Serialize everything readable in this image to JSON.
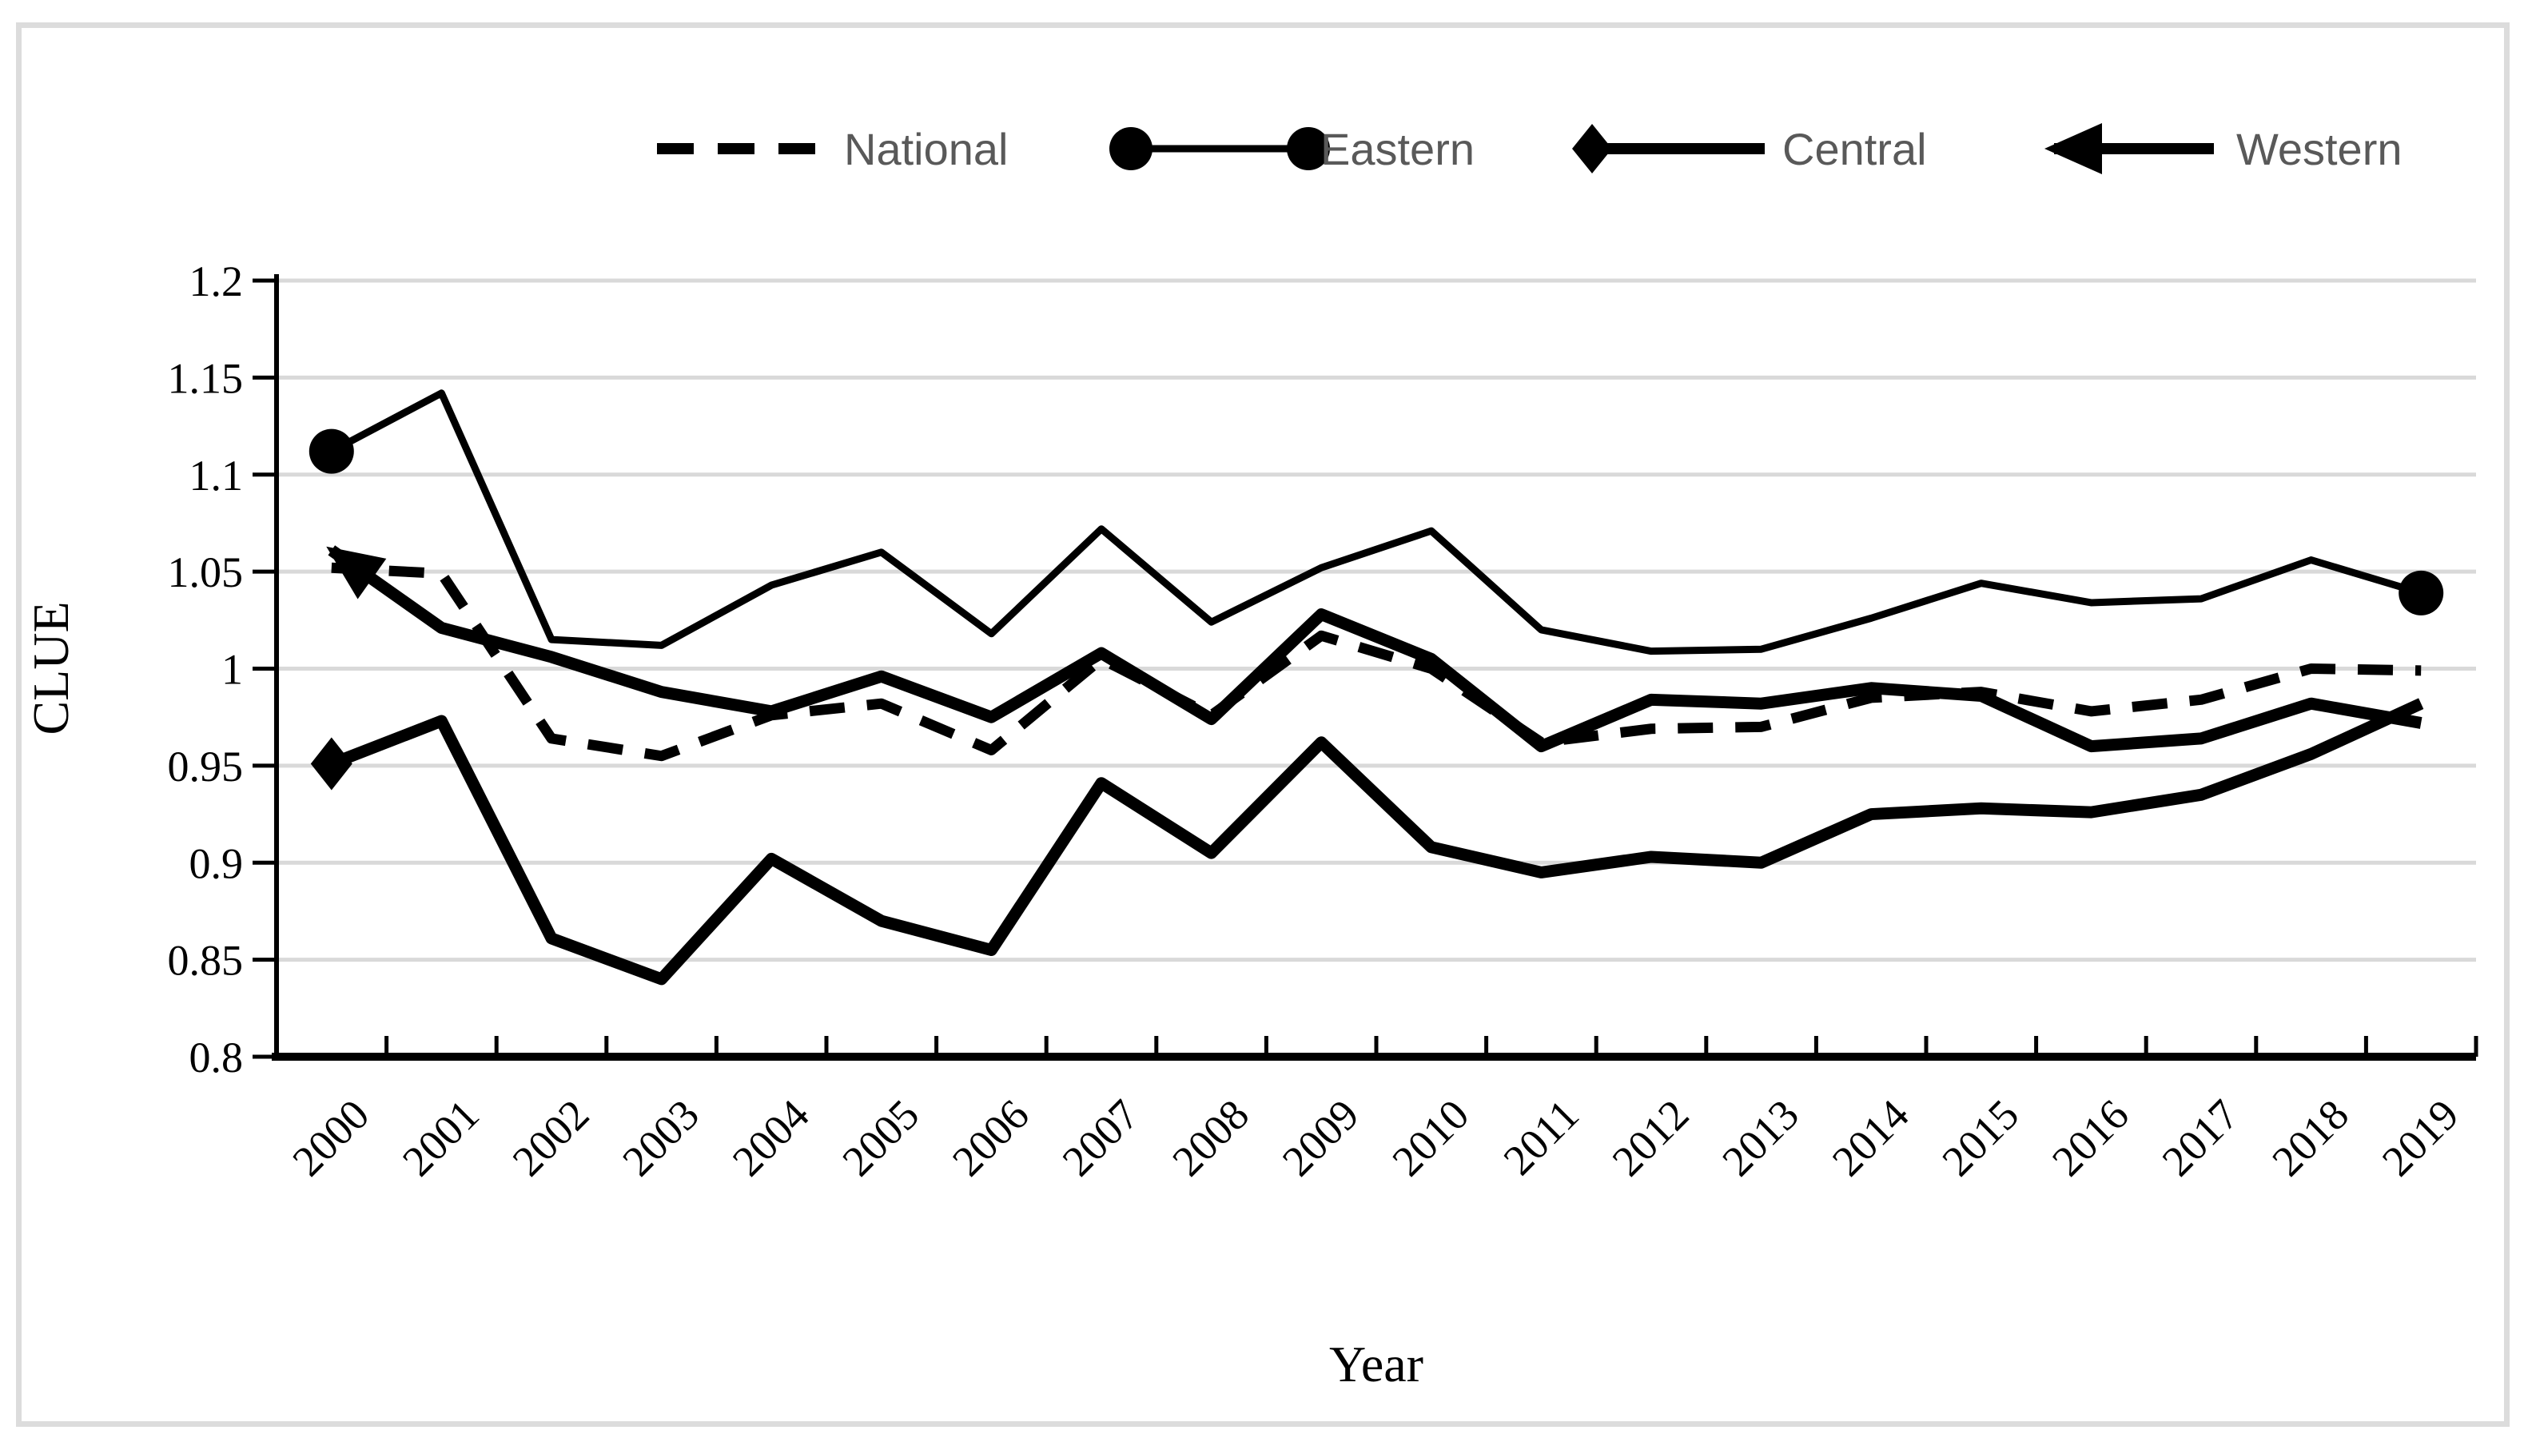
{
  "figure": {
    "background": "#ffffff",
    "border_color": "#dcdcdc"
  },
  "legend": {
    "position": "top",
    "items": [
      {
        "label": "National",
        "marker": "dashed-line"
      },
      {
        "label": "Eastern",
        "marker": "line-with-end-circles"
      },
      {
        "label": "Central",
        "marker": "line-with-start-diamond"
      },
      {
        "label": "Western",
        "marker": "line-with-start-arrow"
      }
    ]
  },
  "chart_data": {
    "type": "line",
    "title": "",
    "xlabel": "Year",
    "ylabel": "CLUE",
    "ylim": [
      0.8,
      1.2
    ],
    "ytick_step": 0.05,
    "grid": "horizontal",
    "legend_position": "top",
    "categories": [
      "2000",
      "2001",
      "2002",
      "2003",
      "2004",
      "2005",
      "2006",
      "2007",
      "2008",
      "2009",
      "2010",
      "2011",
      "2012",
      "2013",
      "2014",
      "2015",
      "2016",
      "2017",
      "2018",
      "2019"
    ],
    "series": [
      {
        "name": "National",
        "line": "dashed",
        "marker": "none",
        "values": [
          1.052,
          1.049,
          0.964,
          0.955,
          0.976,
          0.982,
          0.958,
          1.005,
          0.976,
          1.017,
          1.0,
          0.962,
          0.969,
          0.97,
          0.985,
          0.988,
          0.978,
          0.984,
          1.0,
          0.999
        ]
      },
      {
        "name": "Eastern",
        "line": "thin-solid",
        "marker": "circle-at-endpoints",
        "values": [
          1.112,
          1.142,
          1.015,
          1.012,
          1.043,
          1.06,
          1.018,
          1.072,
          1.024,
          1.052,
          1.071,
          1.02,
          1.009,
          1.01,
          1.026,
          1.044,
          1.034,
          1.036,
          1.056,
          1.039
        ]
      },
      {
        "name": "Central",
        "line": "thick-solid",
        "marker": "diamond-at-start",
        "values": [
          0.951,
          0.973,
          0.861,
          0.84,
          0.902,
          0.87,
          0.855,
          0.941,
          0.905,
          0.962,
          0.908,
          0.895,
          0.903,
          0.9,
          0.925,
          0.928,
          0.926,
          0.935,
          0.956,
          0.982
        ]
      },
      {
        "name": "Western",
        "line": "thick-solid",
        "marker": "arrow-at-start",
        "values": [
          1.061,
          1.021,
          1.006,
          0.988,
          0.978,
          0.996,
          0.975,
          1.008,
          0.974,
          1.028,
          1.005,
          0.96,
          0.984,
          0.982,
          0.99,
          0.986,
          0.96,
          0.964,
          0.982,
          0.972
        ]
      }
    ],
    "colors": {
      "series": "#000000",
      "grid": "#d9d9d9",
      "legend_text": "#595959"
    }
  }
}
